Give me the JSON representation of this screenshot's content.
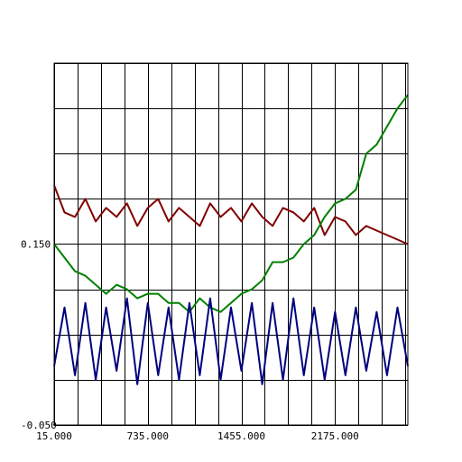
{
  "chart_data": {
    "type": "line",
    "title": "",
    "xlabel": "",
    "ylabel": "",
    "xlim": [
      15.0,
      2735.0
    ],
    "ylim": [
      -0.05,
      0.35
    ],
    "grid": true,
    "x_grid_step": 180,
    "y_grid_step": 0.05,
    "x_ticks": [
      15,
      735,
      1455,
      2175
    ],
    "x_tick_labels": [
      "15.000",
      "735.000",
      "1455.000",
      "2175.000"
    ],
    "y_ticks": [
      -0.05,
      0.15
    ],
    "y_tick_labels": [
      "-0.050",
      "0.150"
    ],
    "series": [
      {
        "color": "#800000",
        "values_x": [
          15,
          95,
          175,
          255,
          335,
          415,
          495,
          575,
          655,
          735,
          815,
          895,
          975,
          1055,
          1135,
          1215,
          1295,
          1375,
          1455,
          1535,
          1615,
          1695,
          1775,
          1855,
          1935,
          2015,
          2095,
          2175,
          2255,
          2335,
          2415,
          2495,
          2575,
          2655,
          2735
        ],
        "values_y": [
          0.215,
          0.185,
          0.18,
          0.2,
          0.175,
          0.19,
          0.18,
          0.195,
          0.17,
          0.19,
          0.2,
          0.175,
          0.19,
          0.18,
          0.17,
          0.195,
          0.18,
          0.19,
          0.175,
          0.195,
          0.18,
          0.17,
          0.19,
          0.185,
          0.175,
          0.19,
          0.16,
          0.18,
          0.175,
          0.16,
          0.17,
          0.165,
          0.16,
          0.155,
          0.15
        ]
      },
      {
        "color": "#008000",
        "values_x": [
          15,
          95,
          175,
          255,
          335,
          415,
          495,
          575,
          655,
          735,
          815,
          895,
          975,
          1055,
          1135,
          1215,
          1295,
          1375,
          1455,
          1535,
          1615,
          1695,
          1775,
          1855,
          1935,
          2015,
          2095,
          2175,
          2255,
          2335,
          2415,
          2495,
          2575,
          2655,
          2735
        ],
        "values_y": [
          0.15,
          0.135,
          0.12,
          0.115,
          0.105,
          0.095,
          0.105,
          0.1,
          0.09,
          0.095,
          0.095,
          0.085,
          0.085,
          0.075,
          0.09,
          0.08,
          0.075,
          0.085,
          0.095,
          0.1,
          0.11,
          0.13,
          0.13,
          0.135,
          0.15,
          0.16,
          0.18,
          0.195,
          0.2,
          0.21,
          0.25,
          0.26,
          0.28,
          0.3,
          0.315
        ]
      },
      {
        "color": "#000080",
        "values_x": [
          15,
          95,
          175,
          255,
          335,
          415,
          495,
          575,
          655,
          735,
          815,
          895,
          975,
          1055,
          1135,
          1215,
          1295,
          1375,
          1455,
          1535,
          1615,
          1695,
          1775,
          1855,
          1935,
          2015,
          2095,
          2175,
          2255,
          2335,
          2415,
          2495,
          2575,
          2655,
          2735
        ],
        "values_y": [
          0.015,
          0.08,
          0.005,
          0.085,
          0.0,
          0.08,
          0.01,
          0.09,
          -0.005,
          0.085,
          0.005,
          0.08,
          0.0,
          0.085,
          0.005,
          0.09,
          0.0,
          0.08,
          0.01,
          0.085,
          -0.005,
          0.085,
          0.0,
          0.09,
          0.005,
          0.08,
          0.0,
          0.075,
          0.005,
          0.08,
          0.01,
          0.075,
          0.005,
          0.08,
          0.015
        ]
      }
    ]
  }
}
